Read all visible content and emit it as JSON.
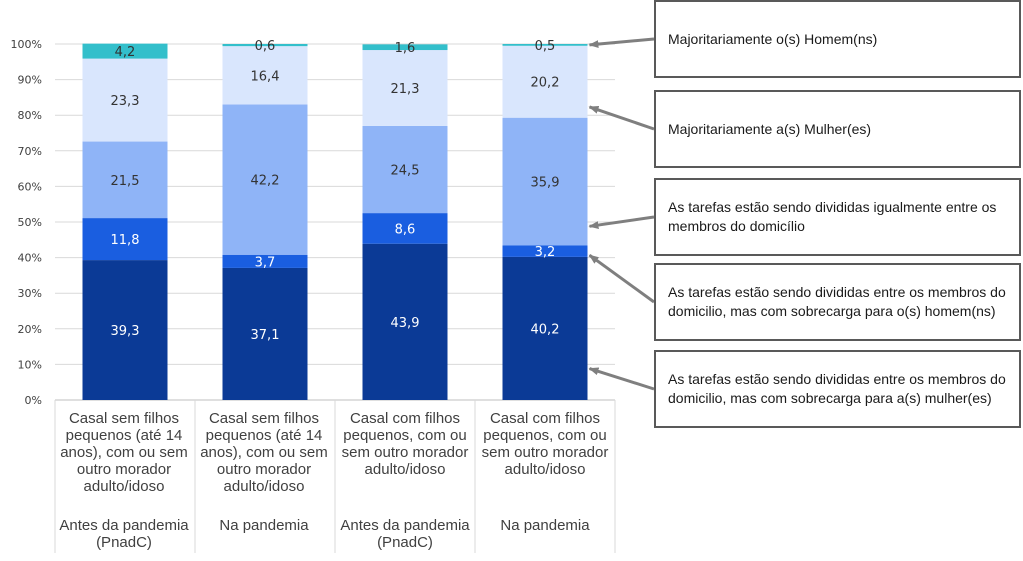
{
  "chart_data": {
    "type": "bar",
    "stacked": true,
    "percent": true,
    "ylim": [
      0,
      100
    ],
    "yticks": [
      "0%",
      "10%",
      "20%",
      "30%",
      "40%",
      "50%",
      "60%",
      "70%",
      "80%",
      "90%",
      "100%"
    ],
    "grid": true,
    "categories": [
      "Casal sem filhos pequenos (até 14 anos), com ou sem outro morador adulto/idoso",
      "Casal sem filhos pequenos (até 14 anos), com ou sem outro morador adulto/idoso",
      "Casal com filhos pequenos, com ou sem outro morador adulto/idoso",
      "Casal com filhos pequenos, com ou sem outro morador adulto/idoso"
    ],
    "groups": [
      "Antes da pandemia (PnadC)",
      "Na pandemia",
      "Antes da pandemia (PnadC)",
      "Na pandemia"
    ],
    "series": [
      {
        "name": "As tarefas estão sendo divididas entre os membros do domicilio, mas com sobrecarga para a(s) mulher(es)",
        "values": [
          39.3,
          37.1,
          43.9,
          40.2
        ],
        "color": "#0B3A96",
        "label_color": "#ffffff"
      },
      {
        "name": "As tarefas estão sendo divididas entre os membros do domicilio, mas com sobrecarga para o(s) homem(ns)",
        "values": [
          11.8,
          3.7,
          8.6,
          3.2
        ],
        "color": "#1A5EE0",
        "label_color": "#ffffff"
      },
      {
        "name": "As tarefas estão sendo divididas igualmente entre os membros do domicílio",
        "values": [
          21.5,
          42.2,
          24.5,
          35.9
        ],
        "color": "#8FB4F7",
        "label_color": "#333333"
      },
      {
        "name": "Majoritariamente a(s) Mulher(es)",
        "values": [
          23.3,
          16.4,
          21.3,
          20.2
        ],
        "color": "#D9E6FD",
        "label_color": "#333333"
      },
      {
        "name": "Majoritariamente o(s) Homem(ns)",
        "values": [
          4.2,
          0.6,
          1.6,
          0.5
        ],
        "color": "#33BFCB",
        "label_color": "#333333"
      }
    ],
    "value_labels": [
      [
        "39,3",
        "37,1",
        "43,9",
        "40,2"
      ],
      [
        "11,8",
        "3,7",
        "8,6",
        "3,2"
      ],
      [
        "21,5",
        "42,2",
        "24,5",
        "35,9"
      ],
      [
        "23,3",
        "16,4",
        "21,3",
        "20,2"
      ],
      [
        "4,2",
        "0,6",
        "1,6",
        "0,5"
      ]
    ],
    "legend_placement": "right"
  },
  "category_lines": [
    [
      "Casal sem filhos",
      "pequenos (até 14",
      "anos), com ou sem",
      "outro morador",
      "adulto/idoso"
    ],
    [
      "Casal sem filhos",
      "pequenos (até 14",
      "anos), com ou sem",
      "outro morador",
      "adulto/idoso"
    ],
    [
      "Casal com filhos",
      "pequenos, com ou",
      "sem outro morador",
      "adulto/idoso"
    ],
    [
      "Casal com filhos",
      "pequenos, com ou",
      "sem outro morador",
      "adulto/idoso"
    ]
  ],
  "group_lines": [
    [
      "Antes da pandemia",
      "(PnadC)"
    ],
    [
      "Na pandemia"
    ],
    [
      "Antes da pandemia",
      "(PnadC)"
    ],
    [
      "Na pandemia"
    ]
  ],
  "legend": [
    {
      "text": "Majoritariamente o(s) Homem(ns)",
      "series_index": 4
    },
    {
      "text": "Majoritariamente a(s) Mulher(es)",
      "series_index": 3
    },
    {
      "text": "As tarefas estão sendo divididas igualmente entre os membros do domicílio",
      "series_index": 2
    },
    {
      "text": "As tarefas estão sendo divididas entre os membros do domicilio, mas com sobrecarga para o(s) homem(ns)",
      "series_index": 1
    },
    {
      "text": "As tarefas estão sendo divididas entre os membros do domicilio, mas com sobrecarga para a(s) mulher(es)",
      "series_index": 0
    }
  ]
}
